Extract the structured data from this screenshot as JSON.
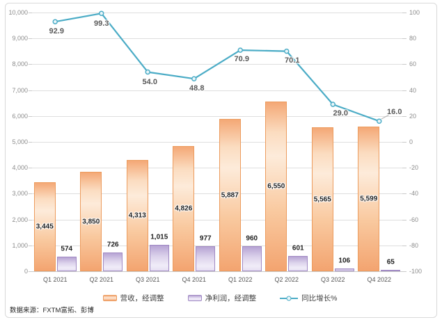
{
  "source_note": "数据来源：FXTM富拓、彭博",
  "chart_data": {
    "type": "bar",
    "subtype": "combo-bar-line",
    "categories": [
      "Q1 2021",
      "Q2 2021",
      "Q3 2021",
      "Q4 2021",
      "Q1 2022",
      "Q2 2022",
      "Q3 2022",
      "Q4 2022"
    ],
    "series": [
      {
        "name": "营收，经调整",
        "type": "bar",
        "axis": "left",
        "values": [
          3445,
          3850,
          4313,
          4826,
          5887,
          6550,
          5565,
          5599
        ],
        "labels": [
          "3,445",
          "3,850",
          "4,313",
          "4,826",
          "5,887",
          "6,550",
          "5,565",
          "5,599"
        ],
        "fill_light": "#fdebda",
        "fill_dark": "#f4a876",
        "border": "#ec9b5d"
      },
      {
        "name": "净利润，经调整",
        "type": "bar",
        "axis": "left",
        "values": [
          574,
          726,
          1015,
          977,
          960,
          601,
          106,
          65
        ],
        "labels": [
          "574",
          "726",
          "1,015",
          "977",
          "960",
          "601",
          "106",
          "65"
        ],
        "fill_light": "#f0ecf8",
        "fill_dark": "#b7a4d4",
        "border": "#a089c3"
      },
      {
        "name": "同比增长%",
        "type": "line",
        "axis": "right",
        "values": [
          92.9,
          99.3,
          54.0,
          48.8,
          70.9,
          70.1,
          29.0,
          16.0
        ],
        "labels": [
          "92.9",
          "99.3",
          "54.0",
          "48.8",
          "70.9",
          "70.1",
          "29.0",
          "16.0"
        ],
        "color": "#4bacc6"
      }
    ],
    "left_axis": {
      "min": 0,
      "max": 10000,
      "step": 1000,
      "tick_labels": [
        "0",
        "1,000",
        "2,000",
        "3,000",
        "4,000",
        "5,000",
        "6,000",
        "7,000",
        "8,000",
        "9,000",
        "10,000"
      ]
    },
    "right_axis": {
      "min": -100,
      "max": 100,
      "step": 20,
      "tick_labels": [
        "-100",
        "-80",
        "-60",
        "-40",
        "-20",
        "0",
        "20",
        "40",
        "60",
        "80",
        "100"
      ]
    },
    "grid": true,
    "legend_position": "bottom",
    "colors": {
      "grid": "#dedede",
      "axis_text": "#8c8c8c",
      "bar_label_text": "#1f1f1f",
      "line_label_text": "#595959",
      "line": "#4bacc6"
    }
  }
}
